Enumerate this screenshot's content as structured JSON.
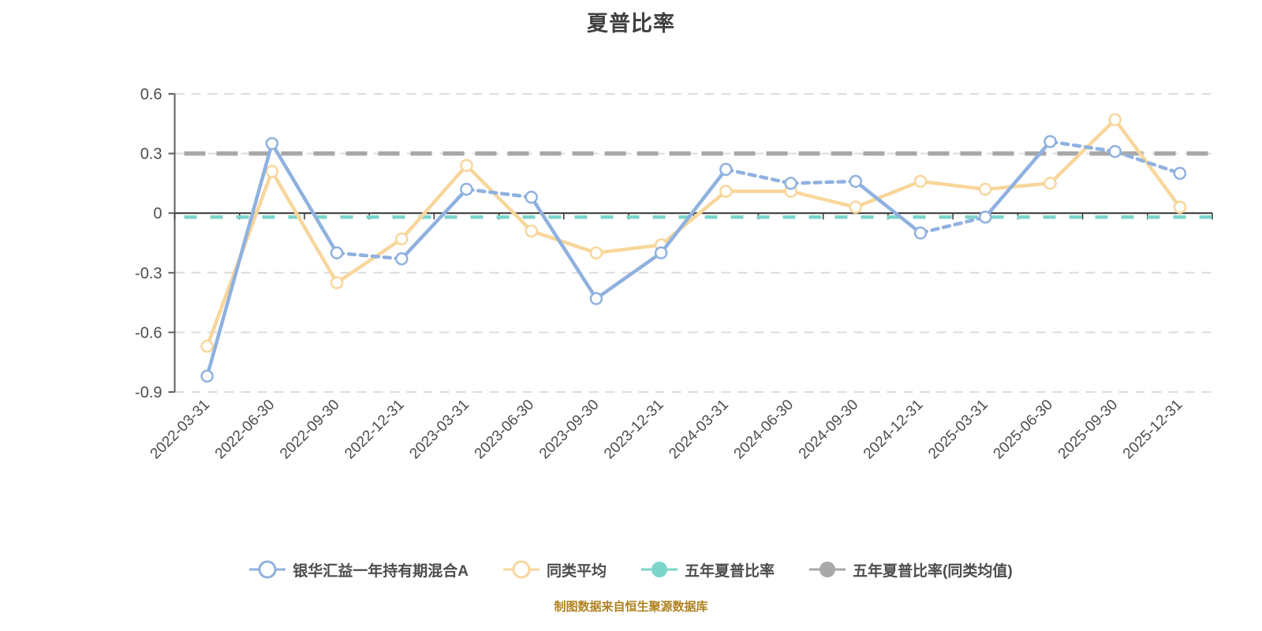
{
  "header": {
    "title": "夏普比率"
  },
  "source_note": {
    "text": "制图数据来自恒生聚源数据库",
    "color": "#b0821d"
  },
  "palette": {
    "fund_blue": "#8FB1DF",
    "peer_yellow": "#F8D69B",
    "five_year_teal": "#7BD5CA",
    "five_year_gray": "#A8A8A8",
    "gridline": "#DCDCDC",
    "zero_line": "#333333",
    "axis_line": "#5f5f5f",
    "tick_label": "#4d4d4d"
  },
  "chart_data": {
    "type": "line",
    "title": "夏普比率",
    "categories": [
      "2022-03-31",
      "2022-06-30",
      "2022-09-30",
      "2022-12-31",
      "2023-03-31",
      "2023-06-30",
      "2023-09-30",
      "2023-12-31",
      "2024-03-31",
      "2024-06-30",
      "2024-09-30",
      "2024-12-31",
      "2025-03-31",
      "2025-06-30",
      "2025-09-30",
      "2025-12-31"
    ],
    "y_axis": {
      "min": -0.9,
      "max": 0.6,
      "step": 0.3,
      "tick_labels": [
        "0.6",
        "0.3",
        "0",
        "-0.3",
        "-0.6",
        "-0.9"
      ]
    },
    "grid": {
      "gridlines_dashed": true,
      "legend_position": "bottom"
    },
    "series": [
      {
        "name": "银华汇益一年持有期混合A",
        "kind": "line",
        "color": "#8FB1DF",
        "marker": "hollow-circle",
        "values": [
          -0.82,
          0.35,
          -0.2,
          -0.23,
          0.12,
          0.08,
          -0.43,
          -0.2,
          0.22,
          0.15,
          0.16,
          -0.1,
          -0.02,
          0.36,
          0.31,
          0.2
        ],
        "dash_segments": [
          false,
          false,
          true,
          false,
          true,
          false,
          false,
          false,
          true,
          true,
          false,
          true,
          false,
          true,
          true
        ]
      },
      {
        "name": "同类平均",
        "kind": "line",
        "color": "#F8D69B",
        "marker": "hollow-circle",
        "values": [
          -0.67,
          0.21,
          -0.35,
          -0.13,
          0.24,
          -0.09,
          -0.2,
          -0.16,
          0.11,
          0.11,
          0.03,
          0.16,
          0.12,
          0.15,
          0.47,
          0.03
        ],
        "dash_segments": [
          false,
          false,
          false,
          false,
          false,
          false,
          false,
          false,
          false,
          false,
          false,
          false,
          false,
          false,
          false
        ]
      },
      {
        "name": "五年夏普比率",
        "kind": "constant-line",
        "color": "#7BD5CA",
        "marker": "solid-circle",
        "value": -0.02,
        "line_style": "dashed"
      },
      {
        "name": "五年夏普比率(同类均值)",
        "kind": "constant-line",
        "color": "#A8A8A8",
        "marker": "solid-circle",
        "value": 0.3,
        "line_style": "dashed"
      }
    ]
  }
}
